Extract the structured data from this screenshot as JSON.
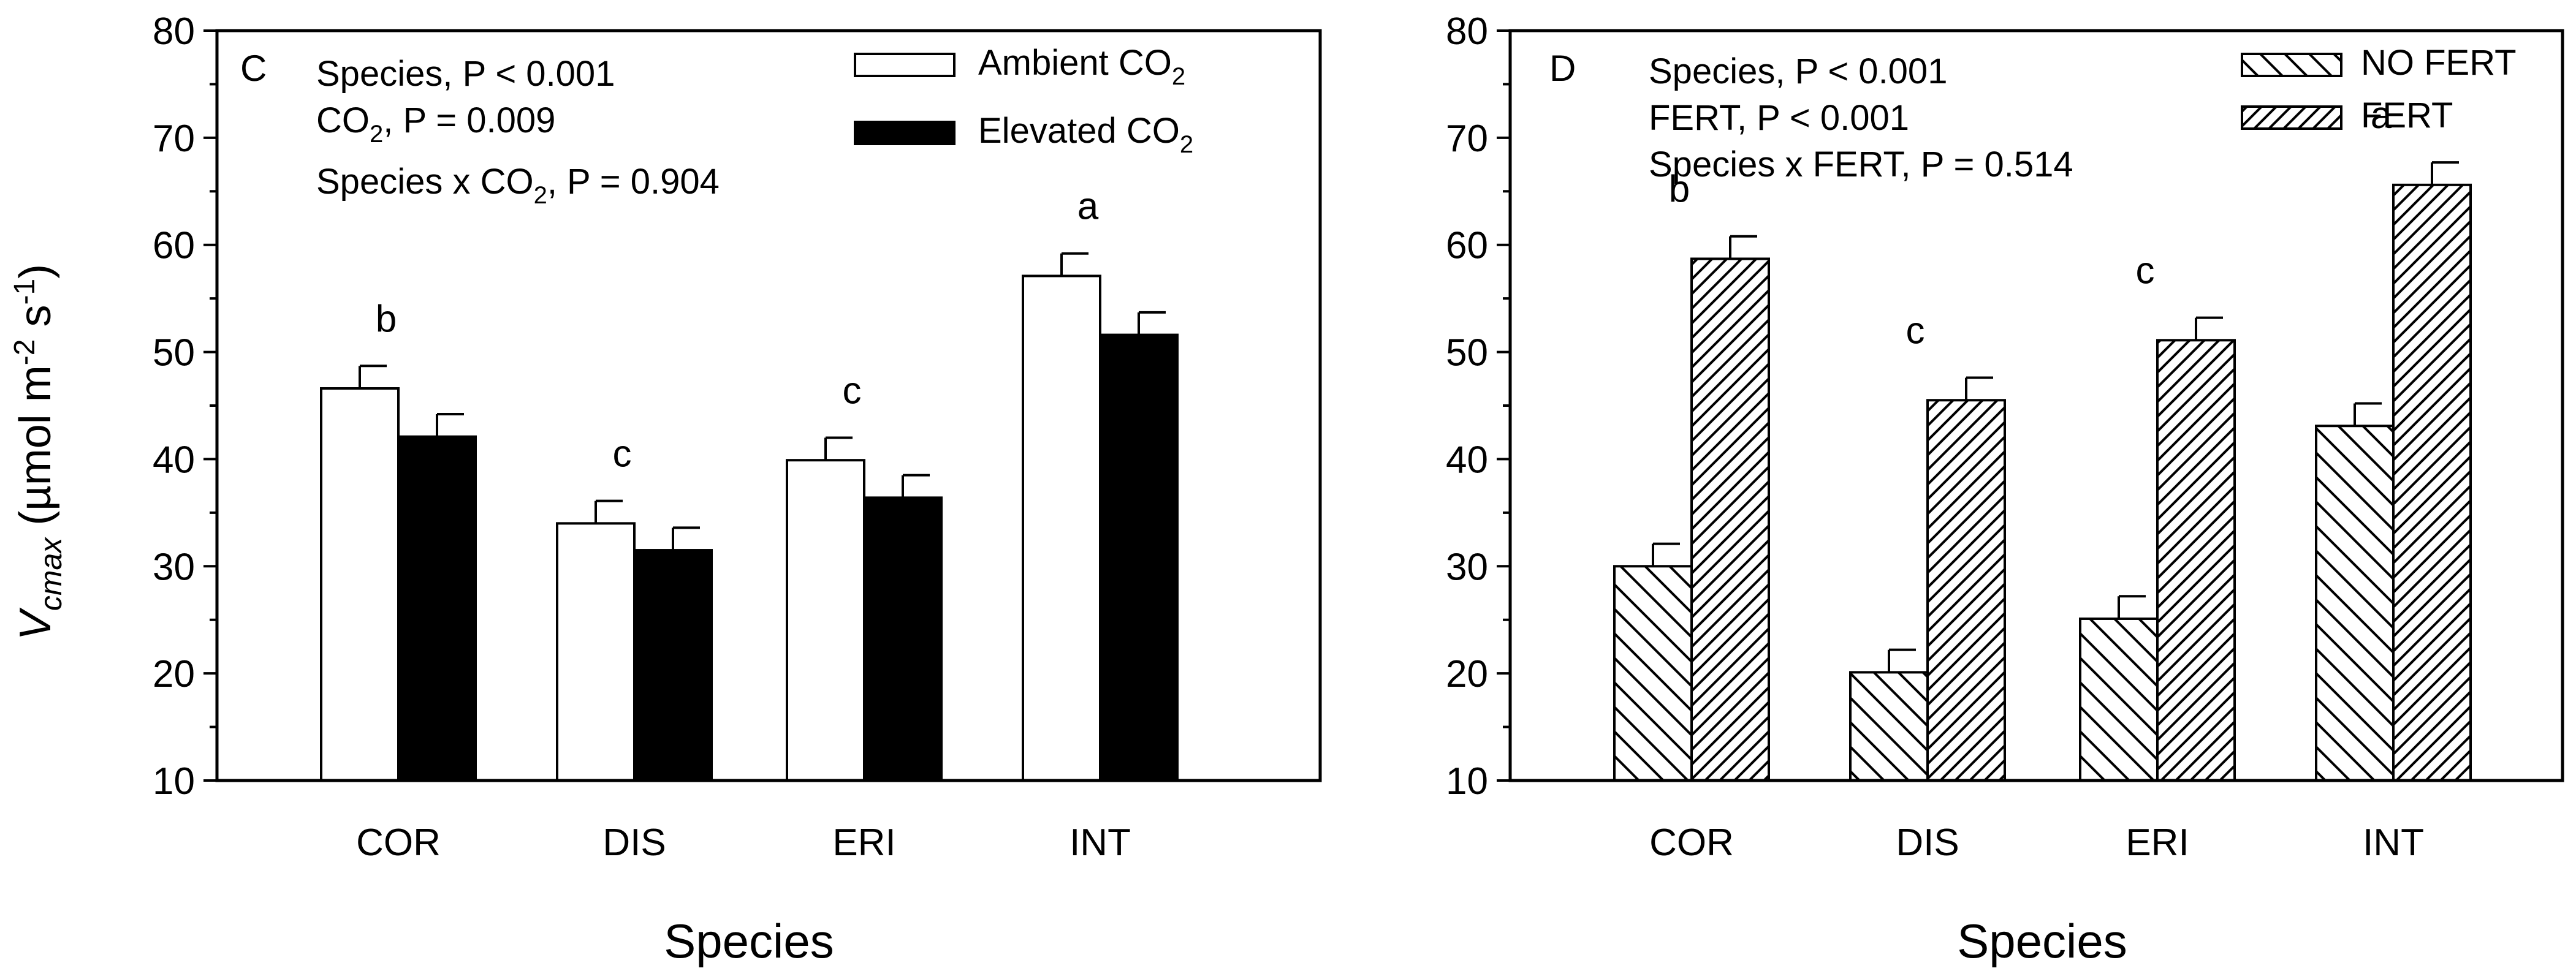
{
  "chart_data": [
    {
      "type": "bar",
      "panel_label": "C",
      "title": "",
      "xlabel": "Species",
      "ylabel": {
        "var": "V",
        "sub": "cmax",
        "unit_open": " (µmol m",
        "sup1": "-2",
        "unit_mid": " s",
        "sup2": "-1",
        "unit_close": ")"
      },
      "ylim": [
        10,
        80
      ],
      "yticks": [
        10,
        20,
        30,
        40,
        50,
        60,
        70,
        80
      ],
      "categories": [
        "COR",
        "DIS",
        "ERI",
        "INT"
      ],
      "series": [
        {
          "name": "Ambient CO2",
          "legend": {
            "main": "Ambient CO",
            "sub": "2"
          },
          "fill": "white",
          "values": [
            46.6,
            34.0,
            39.9,
            57.1
          ],
          "errors": [
            2.1,
            2.1,
            2.1,
            2.1
          ]
        },
        {
          "name": "Elevated CO2",
          "legend": {
            "main": "Elevated CO",
            "sub": "2"
          },
          "fill": "black",
          "values": [
            42.1,
            31.5,
            36.4,
            51.6
          ],
          "errors": [
            2.1,
            2.1,
            2.1,
            2.1
          ]
        }
      ],
      "letters": [
        "b",
        "c",
        "c",
        "a"
      ],
      "stats": [
        {
          "pre": "Species, P < 0.001",
          "sub": "",
          "post": ""
        },
        {
          "pre": "CO",
          "sub": "2",
          "post": ", P = 0.009"
        },
        {
          "pre": "Species x CO",
          "sub": "2",
          "post": ", P = 0.904"
        }
      ]
    },
    {
      "type": "bar",
      "panel_label": "D",
      "title": "",
      "xlabel": "Species",
      "ylim": [
        10,
        80
      ],
      "yticks": [
        10,
        20,
        30,
        40,
        50,
        60,
        70,
        80
      ],
      "categories": [
        "COR",
        "DIS",
        "ERI",
        "INT"
      ],
      "series": [
        {
          "name": "NO FERT",
          "legend": {
            "main": "NO FERT",
            "sub": ""
          },
          "fill": "hatch-back",
          "values": [
            30.0,
            20.1,
            25.1,
            43.1
          ],
          "errors": [
            2.1,
            2.1,
            2.1,
            2.1
          ]
        },
        {
          "name": "FERT",
          "legend": {
            "main": "FERT",
            "sub": ""
          },
          "fill": "hatch-fwd",
          "values": [
            58.7,
            45.5,
            51.1,
            65.6
          ],
          "errors": [
            2.1,
            2.1,
            2.1,
            2.1
          ]
        }
      ],
      "letters": [
        "b",
        "c",
        "c",
        "a"
      ],
      "stats": [
        {
          "pre": "Species, P < 0.001",
          "sub": "",
          "post": ""
        },
        {
          "pre": "FERT, P < 0.001",
          "sub": "",
          "post": ""
        },
        {
          "pre": "Species x FERT, P = 0.514",
          "sub": "",
          "post": ""
        }
      ]
    }
  ]
}
